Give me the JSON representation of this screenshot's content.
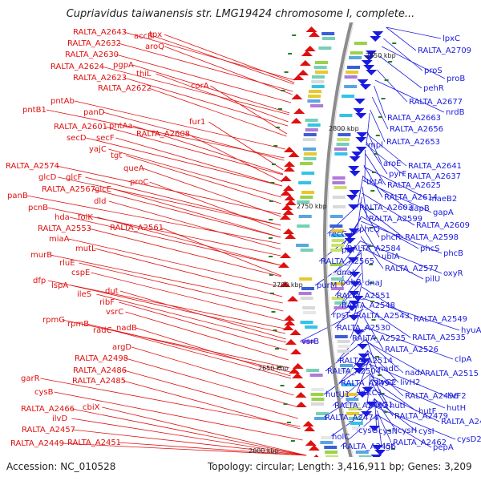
{
  "title": "Cupriavidus taiwanensis str. LMG19424 chromosome I, complete...",
  "footer": {
    "accession": "Accession: NC_010528",
    "summary": "Topology: circular; Length: 3,416,911 bp; Genes: 3,209"
  },
  "colors": {
    "left_genes": "#e01010",
    "right_genes": "#1a1adf",
    "backbone": "#8c8c8c",
    "ticks": "#2a7a2a"
  },
  "scale_labels": [
    "2850 kbp",
    "2800 kbp",
    "2750 kbp",
    "2700 kbp",
    "2650 kbp",
    "2600 kbp"
  ],
  "left_labels": [
    [
      "accB",
      167,
      45
    ],
    [
      "tpx",
      186,
      43
    ],
    [
      "RALTA_A2643",
      91,
      40
    ],
    [
      "RALTA_A2632",
      84,
      54
    ],
    [
      "aroQ",
      181,
      58
    ],
    [
      "RALTA_A2630",
      81,
      68
    ],
    [
      "RALTA_A2624",
      63,
      83
    ],
    [
      "pgpA",
      141,
      81
    ],
    [
      "RALTA_A2623",
      91,
      97
    ],
    [
      "thiL",
      170,
      92
    ],
    [
      "RALTA_A2622",
      122,
      110
    ],
    [
      "corA",
      238,
      107
    ],
    [
      "pntB1",
      28,
      137
    ],
    [
      "pntAb",
      63,
      126
    ],
    [
      "panD",
      104,
      140
    ],
    [
      "RALTA_A2601",
      67,
      158
    ],
    [
      "pntAa",
      136,
      157
    ],
    [
      "fur1",
      236,
      152
    ],
    [
      "RALTA_A2608",
      170,
      167
    ],
    [
      "secD",
      83,
      172
    ],
    [
      "secF",
      120,
      172
    ],
    [
      "yajC",
      111,
      186
    ],
    [
      "tgt",
      138,
      194
    ],
    [
      "RALTA_A2574",
      7,
      207
    ],
    [
      "queA",
      154,
      210
    ],
    [
      "glcD",
      48,
      221
    ],
    [
      "glcF",
      82,
      221
    ],
    [
      "proC",
      162,
      227
    ],
    [
      "RALTA_A2567",
      52,
      236
    ],
    [
      "glcE",
      118,
      236
    ],
    [
      "panB",
      9,
      244
    ],
    [
      "dld",
      117,
      251
    ],
    [
      "pcnB",
      35,
      259
    ],
    [
      "hda",
      68,
      271
    ],
    [
      "folK",
      97,
      271
    ],
    [
      "RALTA_A2553",
      47,
      285
    ],
    [
      "RALTA_A2561",
      137,
      284
    ],
    [
      "miaA",
      61,
      298
    ],
    [
      "mutL",
      94,
      310
    ],
    [
      "murB",
      38,
      318
    ],
    [
      "rluE",
      74,
      328
    ],
    [
      "cspE",
      89,
      340
    ],
    [
      "dfp",
      41,
      350
    ],
    [
      "lspA",
      64,
      356
    ],
    [
      "ileS",
      96,
      367
    ],
    [
      "dut",
      131,
      363
    ],
    [
      "ribF",
      124,
      377
    ],
    [
      "vsrC",
      132,
      389
    ],
    [
      "rpmG",
      53,
      399
    ],
    [
      "rpmB",
      84,
      404
    ],
    [
      "radC",
      116,
      412
    ],
    [
      "nadB",
      145,
      409
    ],
    [
      "argD",
      140,
      433
    ],
    [
      "RALTA_A2498",
      93,
      447
    ],
    [
      "RALTA_A2486",
      91,
      462
    ],
    [
      "RALTA_A2485",
      90,
      475
    ],
    [
      "garR",
      26,
      472
    ],
    [
      "cysB",
      43,
      489
    ],
    [
      "RALTA_A2466",
      26,
      510
    ],
    [
      "cbiX",
      103,
      508
    ],
    [
      "ilvD",
      65,
      522
    ],
    [
      "RALTA_A2457",
      27,
      536
    ],
    [
      "RALTA_A2449",
      13,
      553
    ],
    [
      "RALTA_A2451",
      84,
      552
    ]
  ],
  "right_labels": [
    [
      "lpxC",
      552,
      48
    ],
    [
      "RALTA_A2709",
      521,
      63
    ],
    [
      "proS",
      529,
      88
    ],
    [
      "proB",
      557,
      98
    ],
    [
      "pehR",
      528,
      110
    ],
    [
      "RALTA_A2677",
      510,
      127
    ],
    [
      "nrdB",
      556,
      140
    ],
    [
      "RALTA_A2663",
      483,
      147
    ],
    [
      "RALTA_A2656",
      486,
      161
    ],
    [
      "mpl",
      459,
      181
    ],
    [
      "RALTA_A2653",
      482,
      177
    ],
    [
      "aroE",
      478,
      204
    ],
    [
      "RALTA_A2641",
      509,
      207
    ],
    [
      "pyrF",
      485,
      217
    ],
    [
      "RALTA_A2637",
      508,
      220
    ],
    [
      "tktA",
      457,
      227
    ],
    [
      "RALTA_A2625",
      483,
      231
    ],
    [
      "RALTA_A2614",
      479,
      246
    ],
    [
      "maeB2",
      535,
      248
    ],
    [
      "RALTA_A2603",
      448,
      259
    ],
    [
      "dapB",
      510,
      260
    ],
    [
      "gapA",
      540,
      265
    ],
    [
      "RALTA_A2599",
      460,
      273
    ],
    [
      "phcQ",
      448,
      286
    ],
    [
      "RALTA_A2609",
      519,
      281
    ],
    [
      "recG",
      410,
      292
    ],
    [
      "phcR",
      475,
      296
    ],
    [
      "RALTA_A2598",
      505,
      296
    ],
    [
      "pilT",
      426,
      312
    ],
    [
      "RALTA_A2584",
      433,
      310
    ],
    [
      "phcS",
      524,
      310
    ],
    [
      "ubiA",
      476,
      320
    ],
    [
      "phcB",
      553,
      316
    ],
    [
      "RALTA_A2565",
      400,
      326
    ],
    [
      "RALTA_A2577",
      480,
      335
    ],
    [
      "dnaK",
      420,
      340
    ],
    [
      "oxyR",
      553,
      341
    ],
    [
      "pilU",
      530,
      348
    ],
    [
      "pabB",
      425,
      352
    ],
    [
      "dnaJ",
      455,
      353
    ],
    [
      "purM",
      395,
      356
    ],
    [
      "RALTA_A2551",
      420,
      369
    ],
    [
      "RALTA_A2548",
      426,
      381
    ],
    [
      "rpsT",
      415,
      393
    ],
    [
      "RALTA_A2543",
      444,
      394
    ],
    [
      "RALTA_A2549",
      516,
      398
    ],
    [
      "hyuA",
      575,
      412
    ],
    [
      "RALTA_A2530",
      420,
      409
    ],
    [
      "RALTA_A2525",
      439,
      422
    ],
    [
      "RALTA_A2535",
      514,
      421
    ],
    [
      "vsrB",
      376,
      426
    ],
    [
      "RALTA_A2526",
      480,
      436
    ],
    [
      "clpA",
      567,
      448
    ],
    [
      "RALTA_A2514",
      423,
      450
    ],
    [
      "RALTA_A2504",
      408,
      463
    ],
    [
      "nadC",
      472,
      460
    ],
    [
      "nadA",
      505,
      465
    ],
    [
      "RALTA_A2515",
      530,
      466
    ],
    [
      "RALTA_A2497",
      425,
      478
    ],
    [
      "ilvG2",
      469,
      477
    ],
    [
      "livH2",
      499,
      477
    ],
    [
      "hutU1",
      406,
      492
    ],
    [
      "hutC1",
      447,
      490
    ],
    [
      "RALTA_A2496",
      505,
      494
    ],
    [
      "livF2",
      558,
      494
    ],
    [
      "RALTA_A2482",
      417,
      506
    ],
    [
      "hutG1",
      460,
      505
    ],
    [
      "hutI",
      486,
      506
    ],
    [
      "hutF",
      522,
      513
    ],
    [
      "hutH",
      557,
      509
    ],
    [
      "RALTA_A2474",
      405,
      521
    ],
    [
      "RALTA_A2479",
      492,
      519
    ],
    [
      "RALTA_A2480",
      550,
      526
    ],
    [
      "holC",
      414,
      545
    ],
    [
      "cysG",
      447,
      537
    ],
    [
      "cysN",
      472,
      538
    ],
    [
      "cysH",
      496,
      537
    ],
    [
      "cysI",
      522,
      538
    ],
    [
      "RALTA_A2456",
      427,
      557
    ],
    [
      "lgt",
      478,
      557
    ],
    [
      "RALTA_A2462",
      490,
      552
    ],
    [
      "pepA",
      540,
      558
    ],
    [
      "cysD2",
      570,
      548
    ]
  ]
}
